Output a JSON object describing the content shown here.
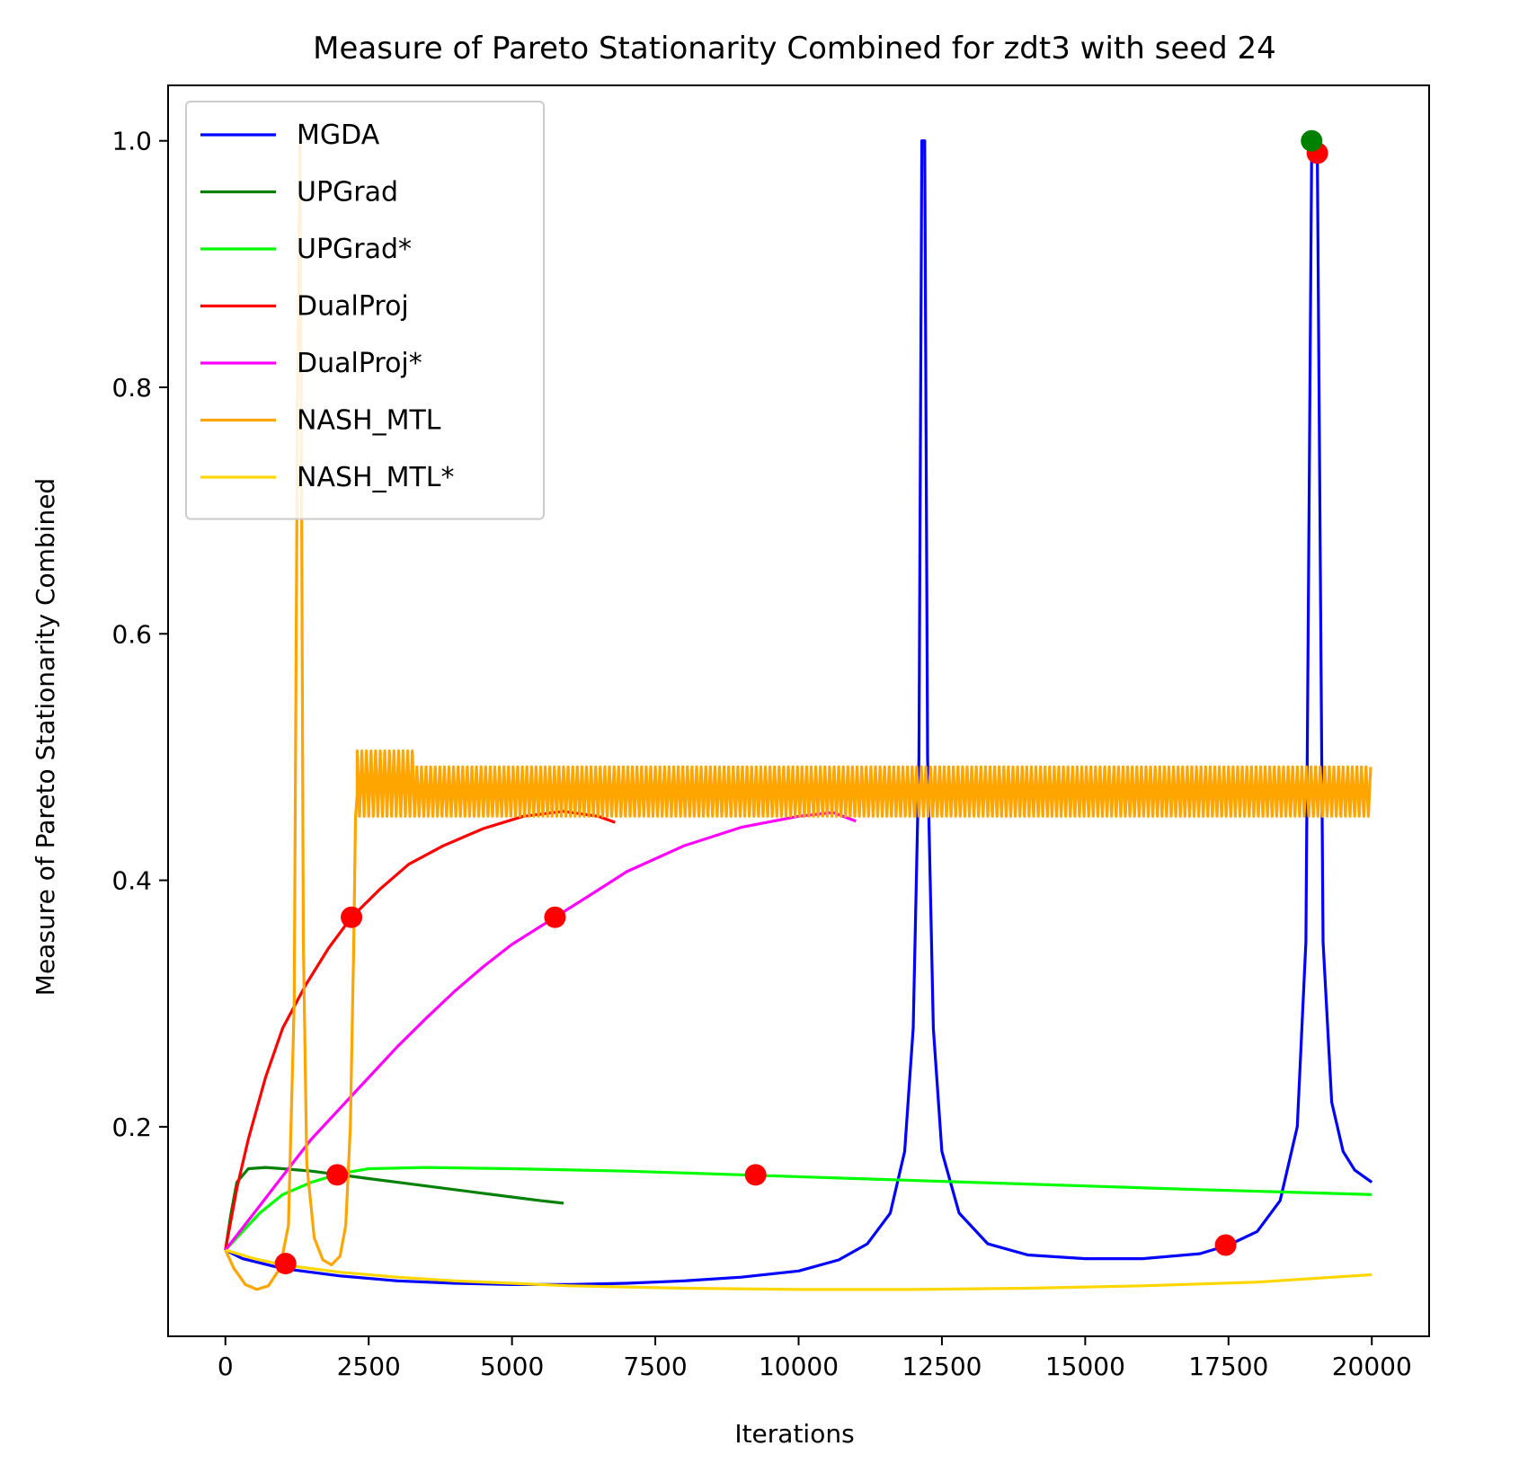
{
  "chart_data": {
    "type": "line",
    "title": "Measure of Pareto Stationarity Combined for zdt3 with seed 24",
    "xlabel": "Iterations",
    "ylabel": "Measure of Pareto Stationarity Combined",
    "xlim": [
      -1000,
      21000
    ],
    "ylim": [
      0.03,
      1.045
    ],
    "xticks": [
      0,
      2500,
      5000,
      7500,
      10000,
      12500,
      15000,
      17500,
      20000
    ],
    "xtick_labels": [
      "0",
      "2500",
      "5000",
      "7500",
      "10000",
      "12500",
      "15000",
      "17500",
      "20000"
    ],
    "yticks": [
      0.2,
      0.4,
      0.6,
      0.8,
      1.0
    ],
    "ytick_labels": [
      "0.2",
      "0.4",
      "0.6",
      "0.8",
      "1.0"
    ],
    "legend_position": "upper-left",
    "grid": false,
    "series": [
      {
        "name": "MGDA",
        "color": "#0000ff",
        "points": [
          [
            0,
            0.1
          ],
          [
            300,
            0.093
          ],
          [
            1000,
            0.085
          ],
          [
            2000,
            0.079
          ],
          [
            3000,
            0.075
          ],
          [
            4000,
            0.073
          ],
          [
            5000,
            0.072
          ],
          [
            6000,
            0.072
          ],
          [
            7000,
            0.073
          ],
          [
            8000,
            0.075
          ],
          [
            9000,
            0.078
          ],
          [
            10000,
            0.083
          ],
          [
            10700,
            0.092
          ],
          [
            11200,
            0.105
          ],
          [
            11600,
            0.13
          ],
          [
            11850,
            0.18
          ],
          [
            12000,
            0.28
          ],
          [
            12100,
            0.5
          ],
          [
            12150,
            1.0
          ],
          [
            12200,
            1.0
          ],
          [
            12250,
            0.5
          ],
          [
            12350,
            0.28
          ],
          [
            12500,
            0.18
          ],
          [
            12800,
            0.13
          ],
          [
            13300,
            0.105
          ],
          [
            14000,
            0.096
          ],
          [
            15000,
            0.093
          ],
          [
            16000,
            0.093
          ],
          [
            17000,
            0.097
          ],
          [
            17500,
            0.104
          ],
          [
            18000,
            0.115
          ],
          [
            18400,
            0.14
          ],
          [
            18700,
            0.2
          ],
          [
            18850,
            0.35
          ],
          [
            18950,
            0.99
          ],
          [
            19050,
            0.99
          ],
          [
            19150,
            0.35
          ],
          [
            19300,
            0.22
          ],
          [
            19500,
            0.18
          ],
          [
            19700,
            0.165
          ],
          [
            20000,
            0.155
          ]
        ]
      },
      {
        "name": "UPGrad",
        "color": "#008000",
        "points": [
          [
            0,
            0.1
          ],
          [
            100,
            0.13
          ],
          [
            200,
            0.155
          ],
          [
            400,
            0.166
          ],
          [
            700,
            0.167
          ],
          [
            1000,
            0.166
          ],
          [
            1500,
            0.164
          ],
          [
            2000,
            0.161
          ],
          [
            2500,
            0.158
          ],
          [
            3000,
            0.155
          ],
          [
            3500,
            0.152
          ],
          [
            4000,
            0.149
          ],
          [
            4500,
            0.146
          ],
          [
            5000,
            0.143
          ],
          [
            5500,
            0.14
          ],
          [
            5900,
            0.138
          ]
        ]
      },
      {
        "name": "UPGrad*",
        "color": "#00ff00",
        "points": [
          [
            0,
            0.1
          ],
          [
            300,
            0.115
          ],
          [
            600,
            0.13
          ],
          [
            1000,
            0.145
          ],
          [
            1500,
            0.155
          ],
          [
            2000,
            0.162
          ],
          [
            2500,
            0.166
          ],
          [
            3500,
            0.167
          ],
          [
            5000,
            0.166
          ],
          [
            7000,
            0.164
          ],
          [
            9000,
            0.161
          ],
          [
            11000,
            0.158
          ],
          [
            13000,
            0.155
          ],
          [
            15000,
            0.152
          ],
          [
            17000,
            0.149
          ],
          [
            18500,
            0.147
          ],
          [
            20000,
            0.145
          ]
        ]
      },
      {
        "name": "DualProj",
        "color": "#ff0000",
        "points": [
          [
            0,
            0.1
          ],
          [
            200,
            0.15
          ],
          [
            400,
            0.19
          ],
          [
            700,
            0.24
          ],
          [
            1000,
            0.28
          ],
          [
            1400,
            0.315
          ],
          [
            1800,
            0.345
          ],
          [
            2200,
            0.37
          ],
          [
            2700,
            0.393
          ],
          [
            3200,
            0.413
          ],
          [
            3800,
            0.428
          ],
          [
            4500,
            0.442
          ],
          [
            5200,
            0.452
          ],
          [
            5900,
            0.456
          ],
          [
            6500,
            0.452
          ],
          [
            6800,
            0.447
          ]
        ]
      },
      {
        "name": "DualProj*",
        "color": "#ff00ff",
        "points": [
          [
            0,
            0.1
          ],
          [
            500,
            0.13
          ],
          [
            1000,
            0.16
          ],
          [
            1500,
            0.19
          ],
          [
            2000,
            0.215
          ],
          [
            2500,
            0.24
          ],
          [
            3000,
            0.265
          ],
          [
            3500,
            0.288
          ],
          [
            4000,
            0.31
          ],
          [
            4500,
            0.33
          ],
          [
            5000,
            0.348
          ],
          [
            5750,
            0.37
          ],
          [
            6500,
            0.392
          ],
          [
            7000,
            0.407
          ],
          [
            8000,
            0.428
          ],
          [
            9000,
            0.443
          ],
          [
            10000,
            0.452
          ],
          [
            10600,
            0.455
          ],
          [
            11000,
            0.448
          ]
        ]
      },
      {
        "name": "NASH_MTL",
        "color": "#ffa500",
        "points": [
          [
            0,
            0.1
          ],
          [
            150,
            0.085
          ],
          [
            350,
            0.072
          ],
          [
            550,
            0.068
          ],
          [
            750,
            0.071
          ],
          [
            950,
            0.085
          ],
          [
            1100,
            0.12
          ],
          [
            1200,
            0.3
          ],
          [
            1260,
            0.8
          ],
          [
            1300,
            1.0
          ],
          [
            1330,
            0.7
          ],
          [
            1360,
            0.35
          ],
          [
            1420,
            0.17
          ],
          [
            1550,
            0.11
          ],
          [
            1700,
            0.092
          ],
          [
            1850,
            0.088
          ],
          [
            2000,
            0.095
          ],
          [
            2100,
            0.12
          ],
          [
            2180,
            0.2
          ],
          [
            2240,
            0.35
          ],
          [
            2270,
            0.45
          ],
          [
            2300,
            0.47
          ]
        ],
        "band": {
          "x_start": 2300,
          "x_end": 20000,
          "y_low": 0.452,
          "y_high": 0.492,
          "initial_y_high": 0.505,
          "period": 80
        }
      },
      {
        "name": "NASH_MTL*",
        "color": "#ffd700",
        "points": [
          [
            0,
            0.1
          ],
          [
            500,
            0.093
          ],
          [
            1000,
            0.088
          ],
          [
            2000,
            0.082
          ],
          [
            3000,
            0.078
          ],
          [
            4000,
            0.075
          ],
          [
            5000,
            0.073
          ],
          [
            6000,
            0.071
          ],
          [
            8000,
            0.069
          ],
          [
            10000,
            0.068
          ],
          [
            12000,
            0.068
          ],
          [
            14000,
            0.069
          ],
          [
            16000,
            0.071
          ],
          [
            18000,
            0.074
          ],
          [
            20000,
            0.08
          ]
        ]
      }
    ],
    "markers": [
      {
        "x": 1050,
        "y": 0.089,
        "color": "#ff0000"
      },
      {
        "x": 1950,
        "y": 0.161,
        "color": "#ff0000"
      },
      {
        "x": 2200,
        "y": 0.37,
        "color": "#ff0000"
      },
      {
        "x": 5750,
        "y": 0.37,
        "color": "#ff0000"
      },
      {
        "x": 9250,
        "y": 0.161,
        "color": "#ff0000"
      },
      {
        "x": 17450,
        "y": 0.104,
        "color": "#ff0000"
      },
      {
        "x": 19050,
        "y": 0.99,
        "color": "#ff0000"
      },
      {
        "x": 18950,
        "y": 1.0,
        "color": "#008000"
      }
    ]
  }
}
